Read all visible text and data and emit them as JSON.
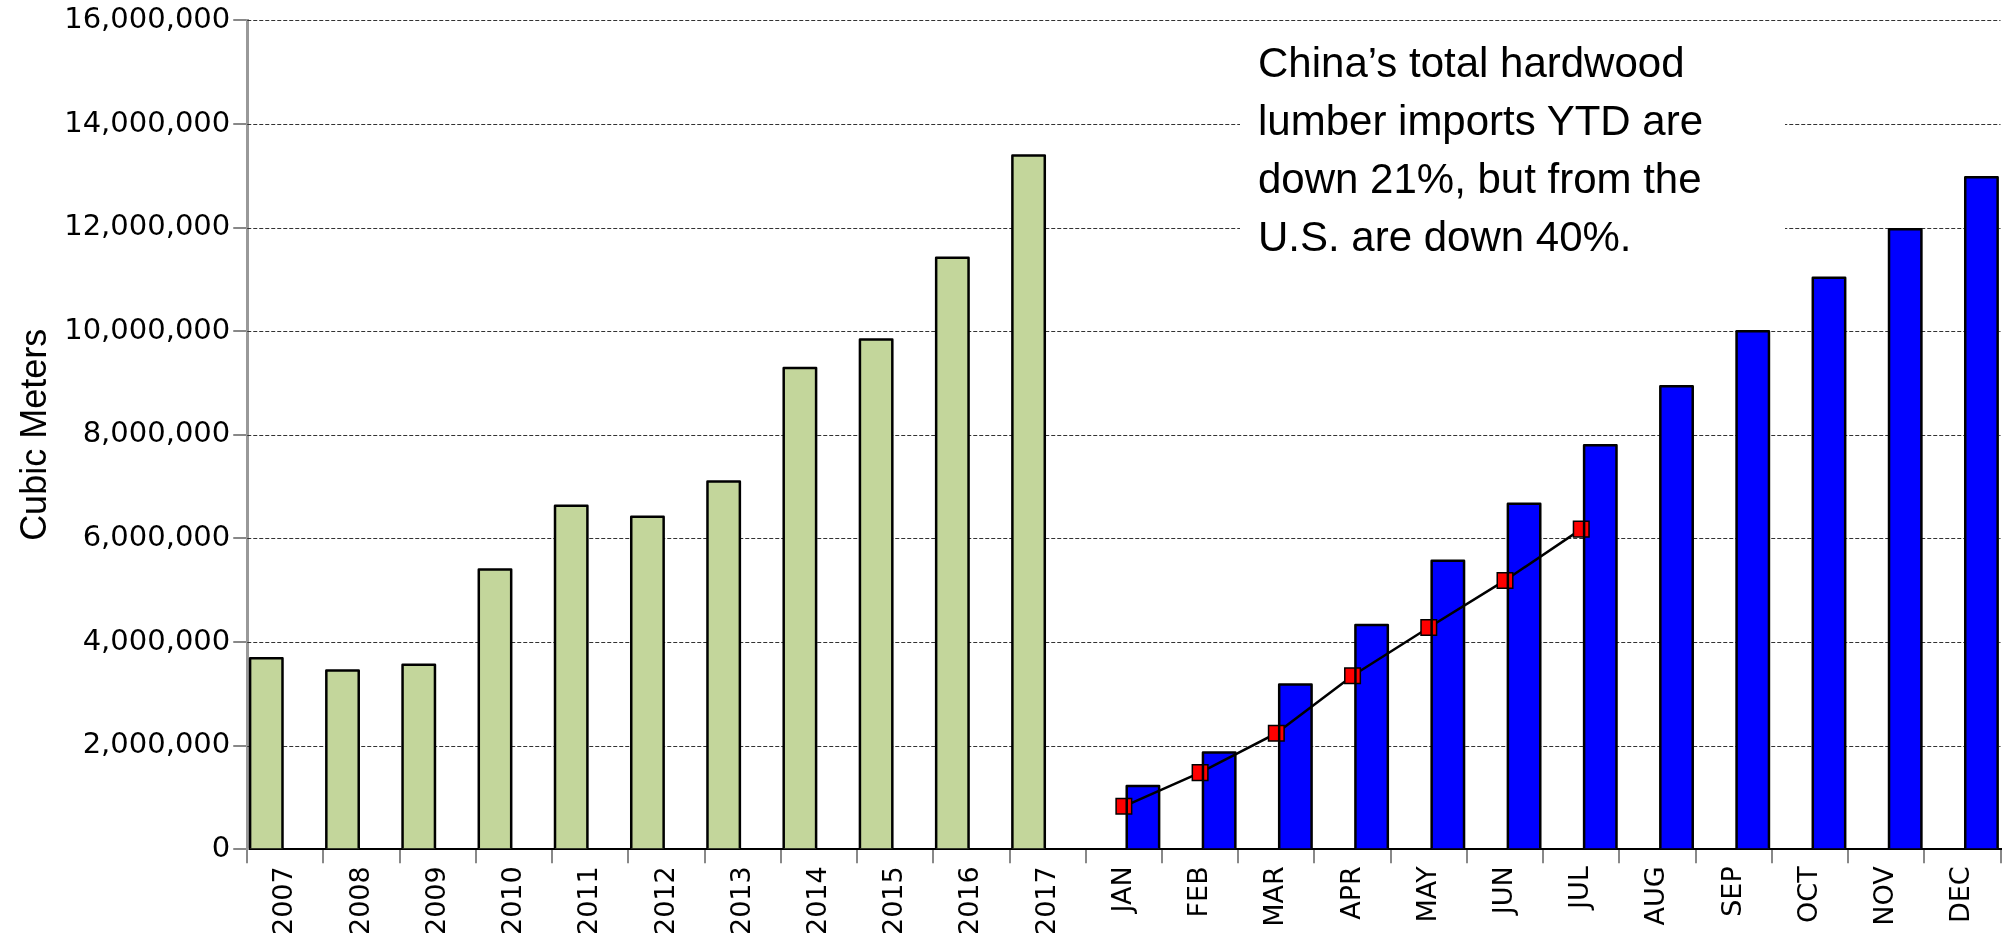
{
  "chart_data": {
    "type": "bar",
    "ylabel": "Cubic Meters",
    "categories": [
      "2007",
      "2008",
      "2009",
      "2010",
      "2011",
      "2012",
      "2013",
      "2014",
      "2015",
      "2016",
      "2017",
      "JAN",
      "FEB",
      "MAR",
      "APR",
      "MAY",
      "JUN",
      "JUL",
      "AUG",
      "SEP",
      "OCT",
      "NOV",
      "DEC"
    ],
    "series": [
      {
        "color": "#c3d69b",
        "values": [
          3690000,
          3450000,
          3560000,
          5400000,
          6630000,
          6420000,
          7100000,
          9290000,
          9840000,
          11420000,
          13390000,
          null,
          null,
          null,
          null,
          null,
          null,
          null,
          null,
          null,
          null,
          null,
          null
        ]
      },
      {
        "color": "#0000ff",
        "values": [
          null,
          null,
          null,
          null,
          null,
          null,
          null,
          null,
          null,
          null,
          null,
          1220000,
          1870000,
          3180000,
          4330000,
          5570000,
          6670000,
          7800000,
          8940000,
          10000000,
          11030000,
          11970000,
          12970000
        ]
      },
      {
        "type": "line",
        "color": "#ff0000",
        "marker": "square",
        "line_style": "solid",
        "values": [
          null,
          null,
          null,
          null,
          null,
          null,
          null,
          null,
          null,
          null,
          null,
          830000,
          1480000,
          2240000,
          3350000,
          4280000,
          5190000,
          6180000,
          null,
          null,
          null,
          null,
          null
        ]
      }
    ],
    "ylim": [
      0,
      16000000
    ],
    "yticks": [
      0,
      {
        "value": 2000000,
        "label": "2,000,000"
      },
      {
        "value": 4000000,
        "label": "4,000,000"
      },
      {
        "value": 6000000,
        "label": "6,000,000"
      },
      {
        "value": 8000000,
        "label": "8,000,000"
      },
      {
        "value": 10000000,
        "label": "10,000,000"
      },
      {
        "value": 12000000,
        "label": "12,000,000"
      },
      {
        "value": 14000000,
        "label": "14,000,000"
      },
      {
        "value": 16000000,
        "label": "16,000,000"
      }
    ],
    "grid": "y",
    "legend": false,
    "annotations": [
      "China’s total hardwood lumber imports YTD are down 21%, but from the U.S. are down 40%."
    ]
  }
}
